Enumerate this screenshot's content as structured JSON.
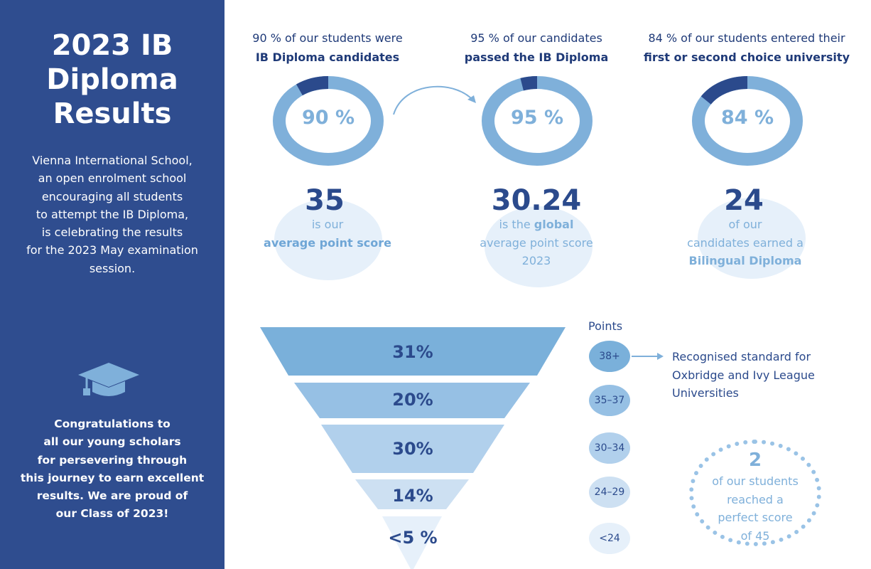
{
  "sidebar": {
    "title_lines": [
      "2023 IB",
      "Diploma",
      "Results"
    ],
    "intro_lines": [
      "Vienna International School,",
      "an open enrolment school",
      "encouraging all students",
      "to attempt the IB Diploma,",
      "is celebrating the results",
      "for the 2023 May examination",
      "session."
    ],
    "congrats_lines": [
      "Congratulations to",
      "all our young scholars",
      "for persevering through",
      "this journey to earn excellent",
      "results. We are proud of",
      "our Class of 2023!"
    ],
    "icon": "graduation-cap-icon"
  },
  "stats": [
    {
      "head_line1": "90 % of our students were",
      "head_line2": "IB Diploma candidates",
      "donut_label": "90 %",
      "donut_value": 0.9,
      "big": "35",
      "sub_line1": "is our",
      "sub_line2": "average point score"
    },
    {
      "head_line1": "95 % of our candidates",
      "head_line2": "passed the IB Diploma",
      "donut_label": "95 %",
      "donut_value": 0.95,
      "big": "30.24",
      "sub_line1a": "is the ",
      "sub_line1b": "global",
      "sub_line2": "average point score",
      "sub_line3": "2023"
    },
    {
      "head_line1": "84 % of our students entered their",
      "head_line2": "first or second choice university",
      "donut_label": "84 %",
      "donut_value": 0.84,
      "big": "24",
      "sub_line1": "of our",
      "sub_line2": "candidates earned a",
      "sub_line3": "Bilingual Diploma"
    }
  ],
  "funnel": {
    "levels": [
      {
        "label": "31%",
        "points": "38+"
      },
      {
        "label": "20%",
        "points": "35–37"
      },
      {
        "label": "30%",
        "points": "30–34"
      },
      {
        "label": "14%",
        "points": "24–29"
      },
      {
        "label": "<5 %",
        "points": "<24"
      }
    ],
    "points_title": "Points",
    "oxbridge_lines": [
      "Recognised standard for",
      "Oxbridge and Ivy League",
      "Universities"
    ]
  },
  "perfect": {
    "number": "2",
    "lines": [
      "of our students",
      "reached a",
      "perfect score",
      "of 45"
    ]
  },
  "colors": {
    "sidebar": "#2f4d8f",
    "navy": "#2b4a8c",
    "light_blue": "#7fb0da",
    "pale_blue": "#e6f0fa"
  }
}
